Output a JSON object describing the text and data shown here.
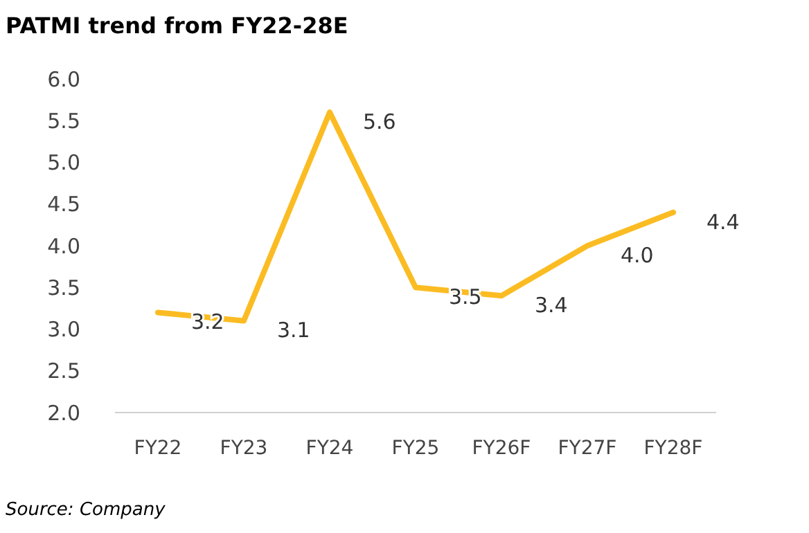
{
  "chart_data": {
    "type": "line",
    "title": "PATMI trend from FY22-28E",
    "categories": [
      "FY22",
      "FY23",
      "FY24",
      "FY25",
      "FY26F",
      "FY27F",
      "FY28F"
    ],
    "series": [
      {
        "color": "#fbbc23",
        "values": [
          3.2,
          3.1,
          5.6,
          3.5,
          3.4,
          4.0,
          4.4
        ],
        "value_labels": [
          "3.2",
          "3.1",
          "5.6",
          "3.5",
          "3.4",
          "4.0",
          "4.4"
        ]
      }
    ],
    "ylim": [
      2,
      6
    ],
    "yticks": [
      {
        "value": 2,
        "label": "2.0"
      },
      {
        "value": 2.5,
        "label": "2.5"
      },
      {
        "value": 3,
        "label": "3.0"
      },
      {
        "value": 3.5,
        "label": "3.5"
      },
      {
        "value": 4,
        "label": "4.0"
      },
      {
        "value": 4.5,
        "label": "4.5"
      },
      {
        "value": 5,
        "label": "5.0"
      },
      {
        "value": 5.5,
        "label": "5.5"
      },
      {
        "value": 6,
        "label": "6.0"
      }
    ],
    "grid": false,
    "marker": "none",
    "line_style": "solid",
    "annotations": [
      "Source: Company"
    ]
  }
}
